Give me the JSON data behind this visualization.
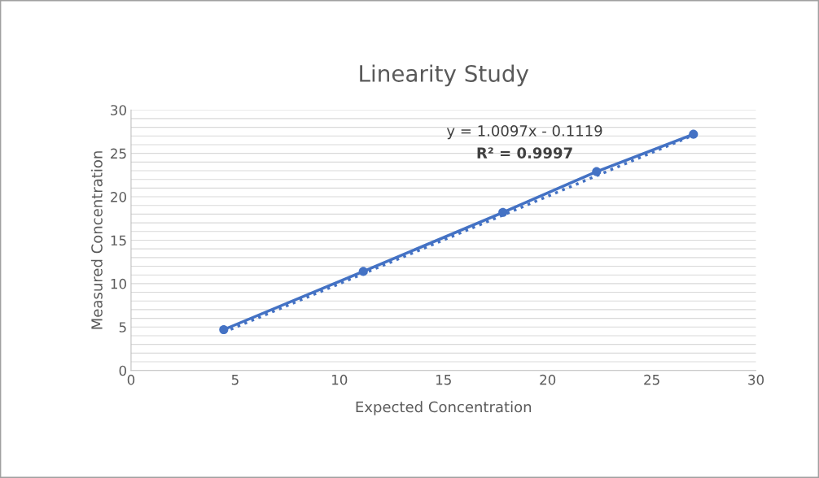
{
  "chart_data": {
    "type": "line",
    "title": "Linearity Study",
    "xlabel": "Expected Concentration",
    "ylabel": "Measured Concentration",
    "series": [
      {
        "color": "#4472c4",
        "x": [
          4.45,
          11.15,
          17.85,
          22.35,
          27.0
        ],
        "values": [
          4.7,
          11.4,
          18.2,
          22.9,
          27.2
        ],
        "marker": "circle",
        "line_style": "solid"
      },
      {
        "color": "#4472c4",
        "x": [
          4.45,
          27.0
        ],
        "values": [
          4.4,
          27.1
        ],
        "marker": "none",
        "line_style": "dotted"
      }
    ],
    "annotations": [
      "y = 1.0097x - 0.1119",
      "R² = 0.9997"
    ],
    "xlim": [
      0,
      30
    ],
    "xticks": [
      0,
      5,
      10,
      15,
      20,
      25,
      30
    ],
    "ylim": [
      0,
      30
    ],
    "yticks": [
      0,
      {
        "value": 1,
        "label": null
      },
      {
        "value": 2,
        "label": null
      },
      {
        "value": 3,
        "label": null
      },
      {
        "value": 4,
        "label": null
      },
      5,
      {
        "value": 6,
        "label": null
      },
      {
        "value": 7,
        "label": null
      },
      {
        "value": 8,
        "label": null
      },
      {
        "value": 9,
        "label": null
      },
      10,
      {
        "value": 11,
        "label": null
      },
      {
        "value": 12,
        "label": null
      },
      {
        "value": 13,
        "label": null
      },
      {
        "value": 14,
        "label": null
      },
      15,
      {
        "value": 16,
        "label": null
      },
      {
        "value": 17,
        "label": null
      },
      {
        "value": 18,
        "label": null
      },
      {
        "value": 19,
        "label": null
      },
      20,
      {
        "value": 21,
        "label": null
      },
      {
        "value": 22,
        "label": null
      },
      {
        "value": 23,
        "label": null
      },
      {
        "value": 24,
        "label": null
      },
      25,
      {
        "value": 26,
        "label": null
      },
      {
        "value": 27,
        "label": null
      },
      {
        "value": 28,
        "label": null
      },
      {
        "value": 29,
        "label": null
      },
      30
    ],
    "grid": "y",
    "legend": false
  }
}
